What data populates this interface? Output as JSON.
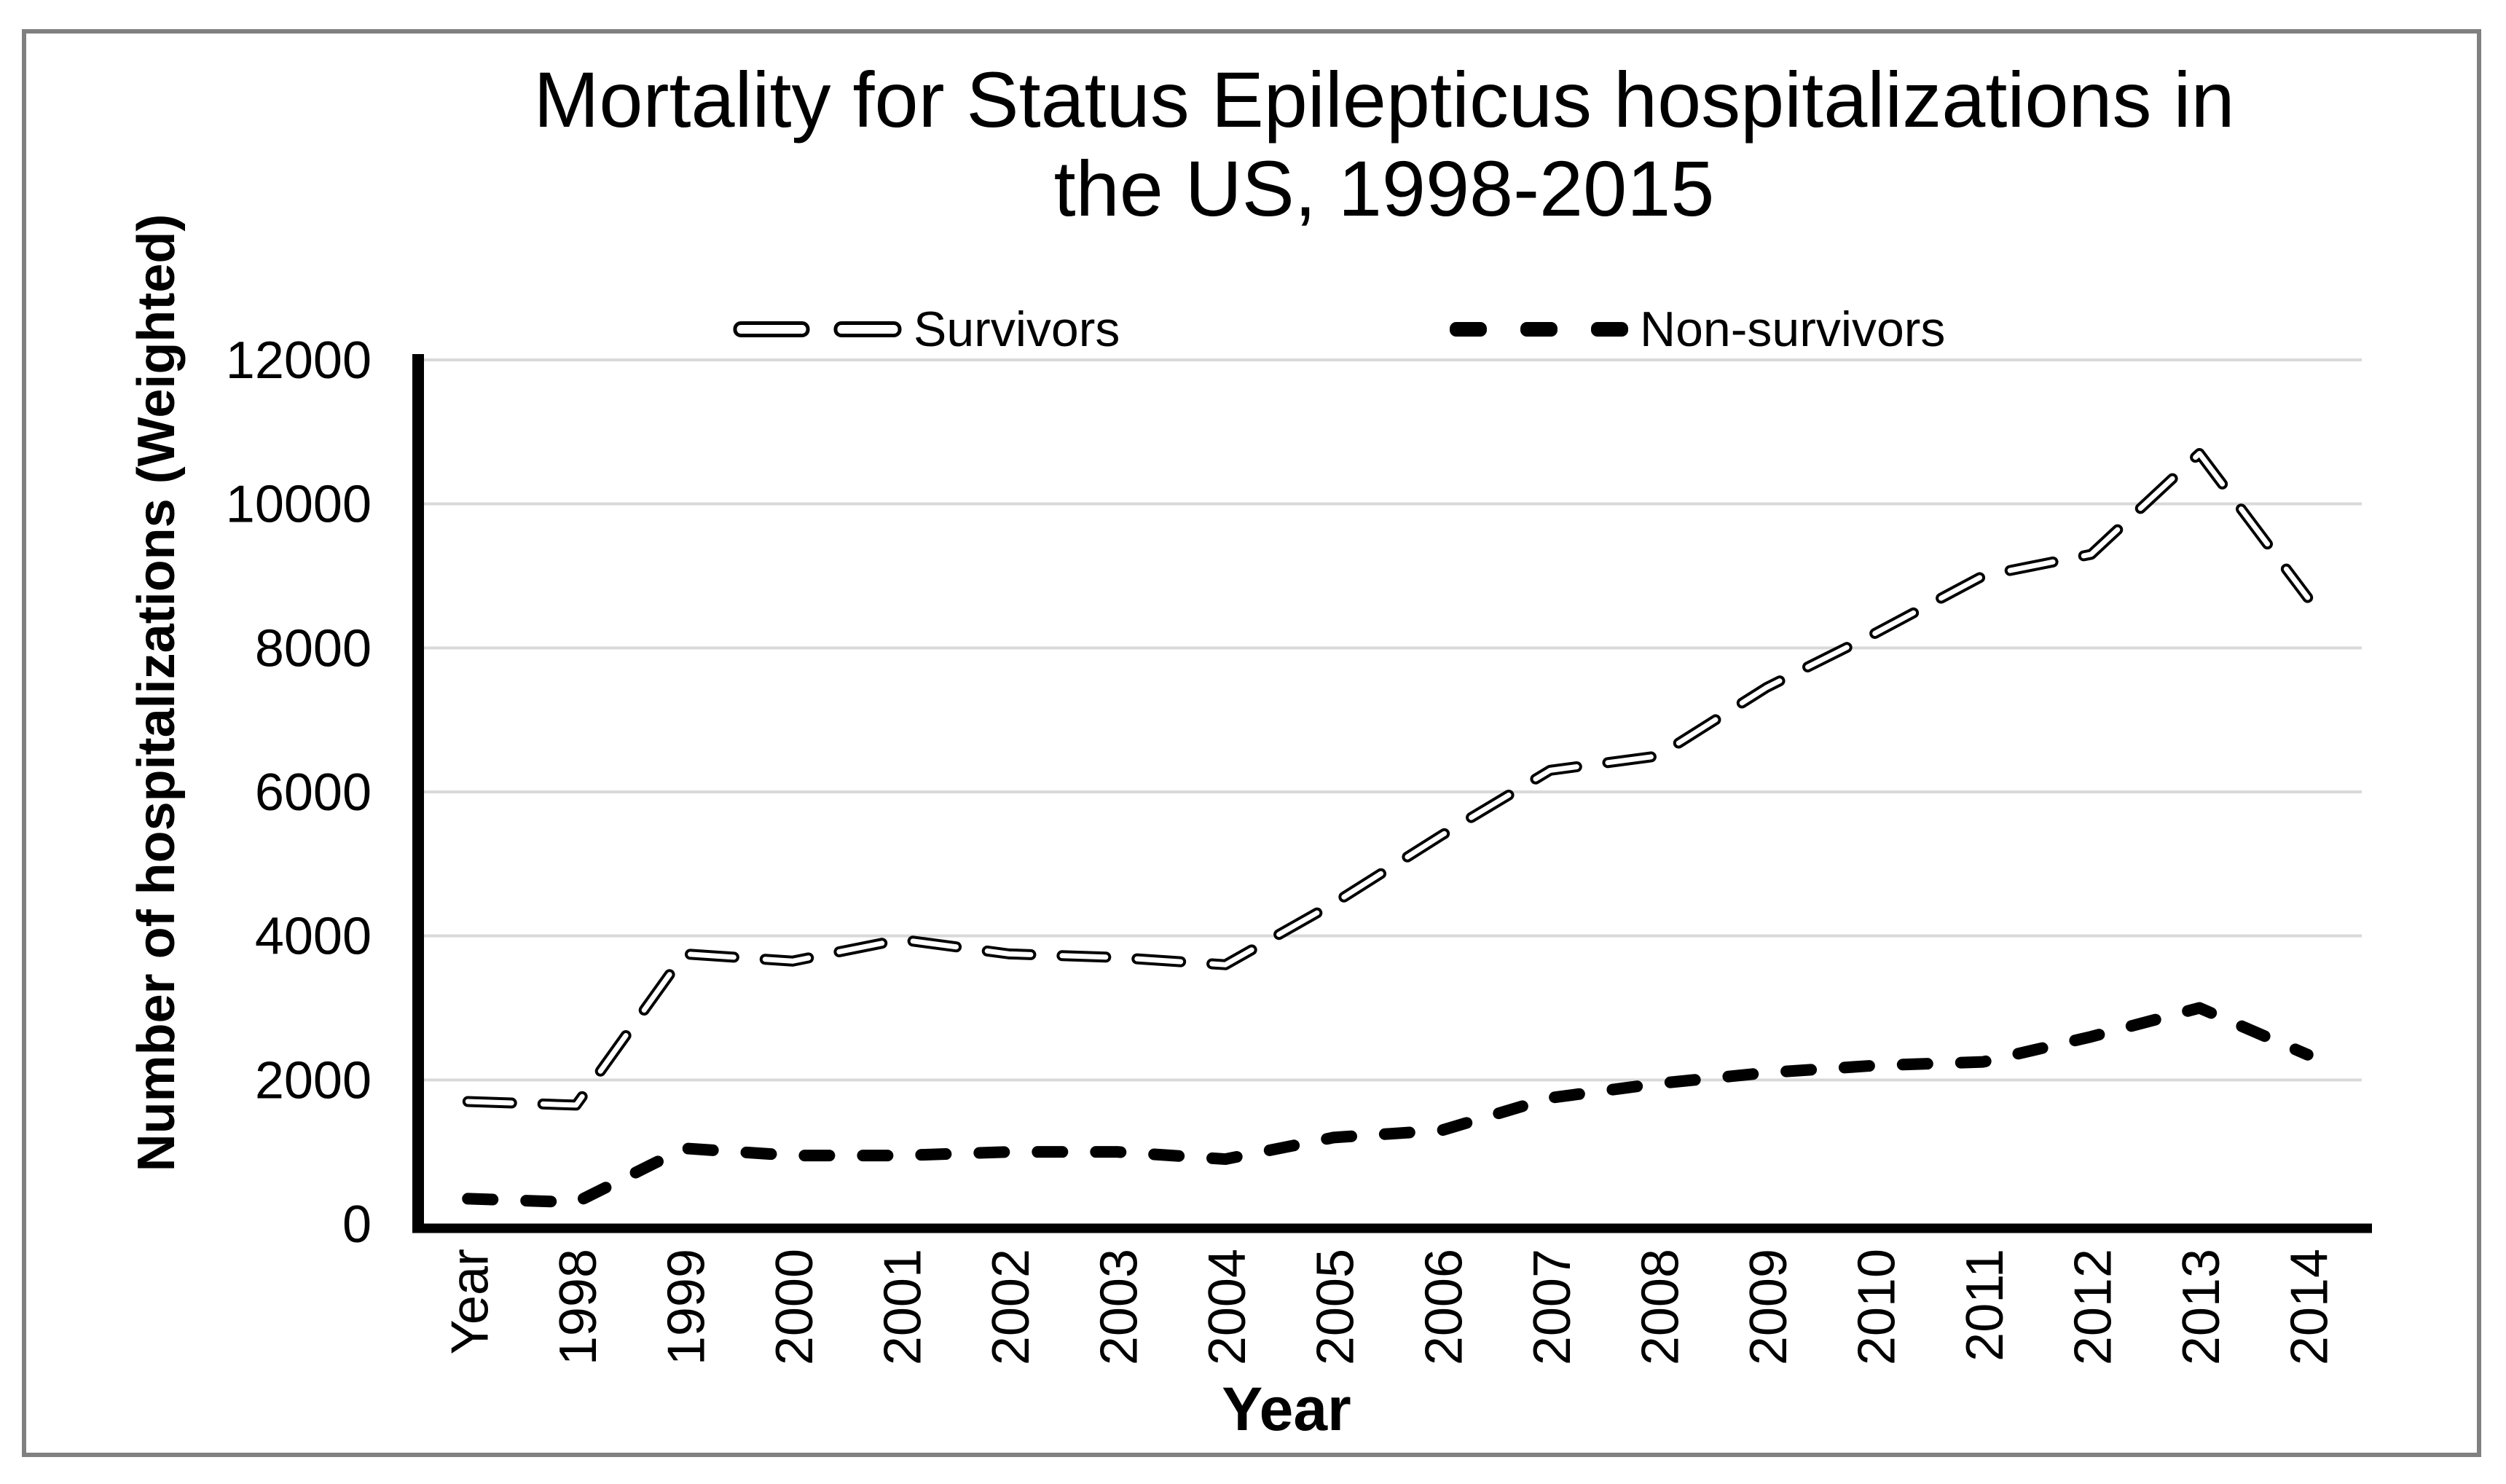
{
  "figure": {
    "title_lines": [
      "Mortality for Status Epilepticus hospitalizations in",
      "the US, 1998-2015"
    ],
    "y_axis": {
      "title": "Number of hospitalizations (Weighted)",
      "tick_labels": [
        "0",
        "2000",
        "4000",
        "6000",
        "8000",
        "10000",
        "12000"
      ]
    },
    "x_axis": {
      "title": "Year"
    },
    "legend": [
      {
        "label": "Survivors",
        "style": "hollow-dash"
      },
      {
        "label": "Non-survivors",
        "style": "solid-dash"
      }
    ],
    "colors": {
      "line": "#000000",
      "gridline": "#d9d9d9",
      "frame": "#808080",
      "background": "#ffffff"
    }
  },
  "chart_data": {
    "type": "line",
    "title": "Mortality for Status Epilepticus hospitalizations in the US, 1998-2015",
    "xlabel": "Year",
    "ylabel": "Number of hospitalizations (Weighted)",
    "categories": [
      "Year",
      "1998",
      "1999",
      "2000",
      "2001",
      "2002",
      "2003",
      "2004",
      "2005",
      "2006",
      "2007",
      "2008",
      "2009",
      "2010",
      "2011",
      "2012",
      "2013",
      "2014"
    ],
    "series": [
      {
        "name": "Survivors",
        "line_style": "long-dash-hollow",
        "values": [
          1700,
          1650,
          3750,
          3650,
          3950,
          3750,
          3700,
          3600,
          4450,
          5400,
          6300,
          6500,
          7450,
          8200,
          9000,
          9300,
          10700,
          8700
        ]
      },
      {
        "name": "Non-survivors",
        "line_style": "short-dash-solid",
        "values": [
          350,
          300,
          1050,
          950,
          950,
          1000,
          1000,
          900,
          1200,
          1300,
          1750,
          1950,
          2100,
          2200,
          2250,
          2600,
          3000,
          2350
        ]
      }
    ],
    "ylim": [
      0,
      12000
    ],
    "y_tick_step": 2000,
    "grid": "horizontal",
    "legend_position": "top-center"
  }
}
